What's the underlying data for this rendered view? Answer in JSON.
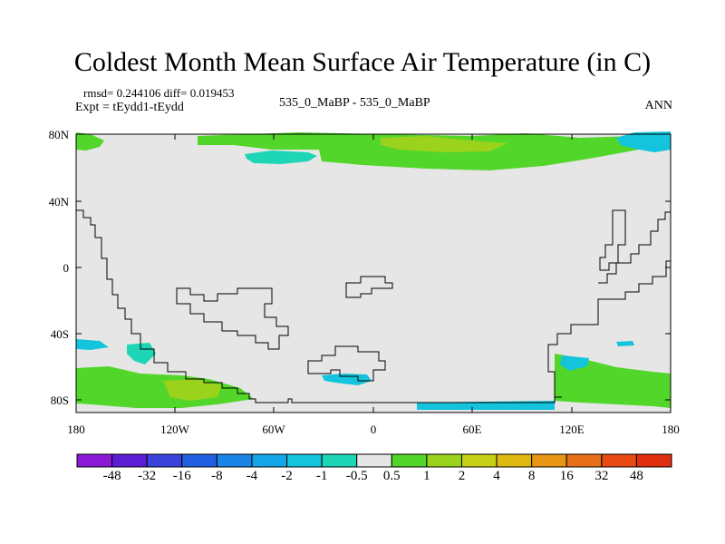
{
  "title": "Coldest Month Mean Surface Air Temperature (in C)",
  "stats": {
    "rmsd_text": "rmsd= 0.244106 diff= 0.019453",
    "expt_text": "Expt = tEydd1-tEydd"
  },
  "case_label": "535_0_MaBP - 535_0_MaBP",
  "season": "ANN",
  "map": {
    "lat_ticks": [
      "80N",
      "40N",
      "0",
      "40S",
      "80S"
    ],
    "lon_ticks": [
      "180",
      "120W",
      "60W",
      "0",
      "60E",
      "120E",
      "180"
    ],
    "background_color": "#e6e6e6"
  },
  "colorbar": {
    "labels": [
      "-48",
      "-32",
      "-16",
      "-8",
      "-4",
      "-2",
      "-1",
      "-0.5",
      "0.5",
      "1",
      "2",
      "4",
      "8",
      "16",
      "32",
      "48"
    ],
    "colors": [
      "#8a1ad6",
      "#5b1ed4",
      "#3b43dc",
      "#2060e0",
      "#1a85e6",
      "#16a6e8",
      "#14c3dc",
      "#1ed6b6",
      "#e6e6e6",
      "#52d62a",
      "#9ad21c",
      "#c6d016",
      "#e0b812",
      "#e69612",
      "#e8701a",
      "#e84a14",
      "#e02e10"
    ]
  }
}
